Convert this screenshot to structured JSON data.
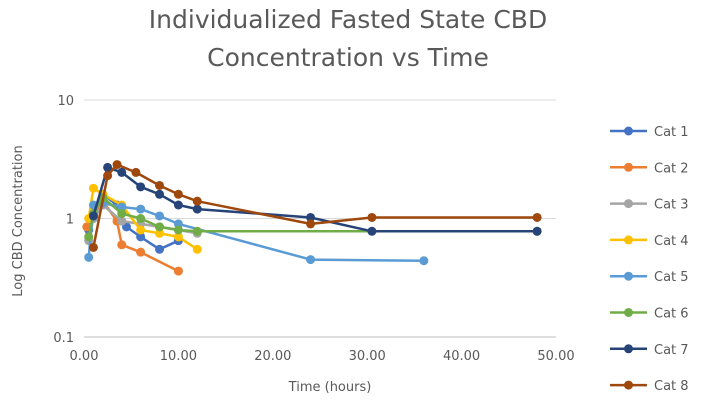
{
  "chart_data": {
    "type": "line",
    "title_lines": [
      "Individualized Fasted State CBD",
      "Concentration vs Time"
    ],
    "xlabel": "Time (hours)",
    "ylabel": "Log CBD Concentration",
    "xlim": [
      0,
      50
    ],
    "ylim": [
      0.1,
      10
    ],
    "yscale": "log",
    "x_ticks": [
      "0.00",
      "10.00",
      "20.00",
      "30.00",
      "40.00",
      "50.00"
    ],
    "y_ticks": [
      "0.1",
      "1",
      "10"
    ],
    "legend_position": "right",
    "grid": true,
    "series": [
      {
        "name": "Cat 1",
        "color": "#4472C4",
        "points": [
          [
            0.5,
            0.8
          ],
          [
            1,
            1.05
          ],
          [
            2,
            1.6
          ],
          [
            3.5,
            1.3
          ],
          [
            4.5,
            0.85
          ],
          [
            6,
            0.7
          ],
          [
            8,
            0.55
          ],
          [
            10,
            0.65
          ]
        ]
      },
      {
        "name": "Cat 2",
        "color": "#ED7D31",
        "points": [
          [
            0.3,
            0.85
          ],
          [
            1,
            1.0
          ],
          [
            2,
            1.4
          ],
          [
            3.5,
            0.95
          ],
          [
            4,
            0.6
          ],
          [
            6,
            0.52
          ],
          [
            10,
            0.36
          ]
        ]
      },
      {
        "name": "Cat 3",
        "color": "#A5A5A5",
        "points": [
          [
            0.5,
            0.65
          ],
          [
            1,
            1.0
          ],
          [
            2,
            1.3
          ],
          [
            4,
            0.95
          ],
          [
            6,
            0.9
          ],
          [
            8,
            0.85
          ],
          [
            10,
            0.8
          ],
          [
            12,
            0.75
          ]
        ]
      },
      {
        "name": "Cat 4",
        "color": "#FFC000",
        "points": [
          [
            0.5,
            1.0
          ],
          [
            1,
            1.8
          ],
          [
            2,
            1.6
          ],
          [
            4,
            1.3
          ],
          [
            6,
            0.8
          ],
          [
            8,
            0.75
          ],
          [
            10,
            0.7
          ],
          [
            12,
            0.55
          ]
        ]
      },
      {
        "name": "Cat 5",
        "color": "#5B9BD5",
        "points": [
          [
            0.5,
            0.47
          ],
          [
            1,
            1.3
          ],
          [
            2,
            1.35
          ],
          [
            4,
            1.25
          ],
          [
            6,
            1.2
          ],
          [
            8,
            1.05
          ],
          [
            10,
            0.9
          ],
          [
            24,
            0.45
          ],
          [
            36,
            0.44
          ]
        ]
      },
      {
        "name": "Cat 6",
        "color": "#70AD47",
        "points": [
          [
            0.5,
            0.7
          ],
          [
            1,
            1.1
          ],
          [
            2,
            1.5
          ],
          [
            4,
            1.1
          ],
          [
            6,
            1.0
          ],
          [
            8,
            0.85
          ],
          [
            10,
            0.8
          ],
          [
            12,
            0.78
          ],
          [
            48,
            0.78
          ]
        ]
      },
      {
        "name": "Cat 7",
        "color": "#264478",
        "points": [
          [
            1,
            1.05
          ],
          [
            2.5,
            2.7
          ],
          [
            4,
            2.45
          ],
          [
            6,
            1.85
          ],
          [
            8,
            1.6
          ],
          [
            10,
            1.3
          ],
          [
            12,
            1.2
          ],
          [
            24,
            1.02
          ],
          [
            30.5,
            0.78
          ],
          [
            48,
            0.78
          ]
        ]
      },
      {
        "name": "Cat 8",
        "color": "#9E480E",
        "points": [
          [
            1,
            0.57
          ],
          [
            2.5,
            2.3
          ],
          [
            3.5,
            2.85
          ],
          [
            5.5,
            2.45
          ],
          [
            8,
            1.9
          ],
          [
            10,
            1.6
          ],
          [
            12,
            1.4
          ],
          [
            24,
            0.9
          ],
          [
            30.5,
            1.02
          ],
          [
            48,
            1.02
          ]
        ]
      }
    ]
  }
}
